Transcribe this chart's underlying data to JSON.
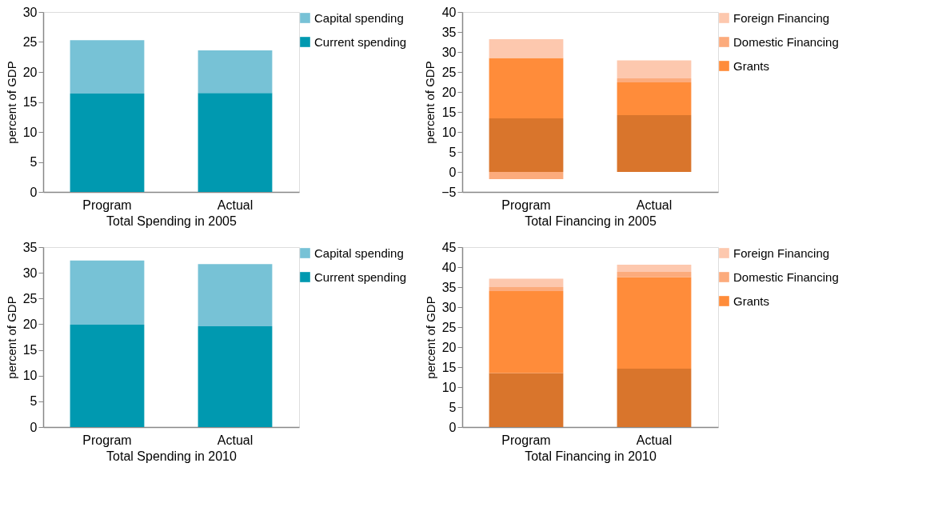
{
  "chart_data": [
    {
      "type": "bar",
      "stacked": true,
      "categories": [
        "Program",
        "Actual"
      ],
      "xlabel": "Total Spending in 2005",
      "ylabel": "percent of GDP",
      "ylim": [
        0,
        30
      ],
      "yticks": [
        0,
        5,
        10,
        15,
        20,
        25,
        30
      ],
      "legend": "right",
      "series": [
        {
          "name": "Current spending",
          "color": "#0099b0",
          "values": [
            16.4,
            16.5
          ]
        },
        {
          "name": "Capital spending",
          "color": "#77c2d6",
          "values": [
            8.9,
            7.1
          ]
        }
      ]
    },
    {
      "type": "bar",
      "stacked": true,
      "categories": [
        "Program",
        "Actual"
      ],
      "xlabel": "Total Financing in 2005",
      "ylabel": "percent of GDP",
      "ylim": [
        -5,
        40
      ],
      "yticks": [
        -5,
        0,
        5,
        10,
        15,
        20,
        25,
        30,
        35,
        40
      ],
      "legend": "right",
      "series": [
        {
          "color": "#d9752c",
          "values": [
            13.4,
            14.2
          ]
        },
        {
          "name": "Grants",
          "color": "#ff8c3a",
          "values": [
            15.1,
            8.2
          ]
        },
        {
          "name": "Domestic Financing",
          "color": "#fcab7c",
          "values": [
            -1.8,
            1.0
          ]
        },
        {
          "name": "Foreign Financing",
          "color": "#fdc8ae",
          "values": [
            4.7,
            4.5
          ]
        }
      ]
    },
    {
      "type": "bar",
      "stacked": true,
      "categories": [
        "Program",
        "Actual"
      ],
      "xlabel": "Total Spending in 2010",
      "ylabel": "percent of GDP",
      "ylim": [
        0,
        35
      ],
      "yticks": [
        0,
        5,
        10,
        15,
        20,
        25,
        30,
        35
      ],
      "legend": "right",
      "series": [
        {
          "name": "Current spending",
          "color": "#0099b0",
          "values": [
            19.9,
            19.6
          ]
        },
        {
          "name": "Capital spending",
          "color": "#77c2d6",
          "values": [
            12.5,
            12.1
          ]
        }
      ]
    },
    {
      "type": "bar",
      "stacked": true,
      "categories": [
        "Program",
        "Actual"
      ],
      "xlabel": "Total Financing in 2010",
      "ylabel": "percent of GDP",
      "ylim": [
        0,
        45
      ],
      "yticks": [
        0,
        5,
        10,
        15,
        20,
        25,
        30,
        35,
        40,
        45
      ],
      "legend": "right",
      "series": [
        {
          "color": "#d9752c",
          "values": [
            13.5,
            14.6
          ]
        },
        {
          "name": "Grants",
          "color": "#ff8c3a",
          "values": [
            20.5,
            22.9
          ]
        },
        {
          "name": "Domestic Financing",
          "color": "#fcab7c",
          "values": [
            1.0,
            1.3
          ]
        },
        {
          "name": "Foreign Financing",
          "color": "#fdc8ae",
          "values": [
            2.1,
            1.8
          ]
        }
      ]
    }
  ]
}
